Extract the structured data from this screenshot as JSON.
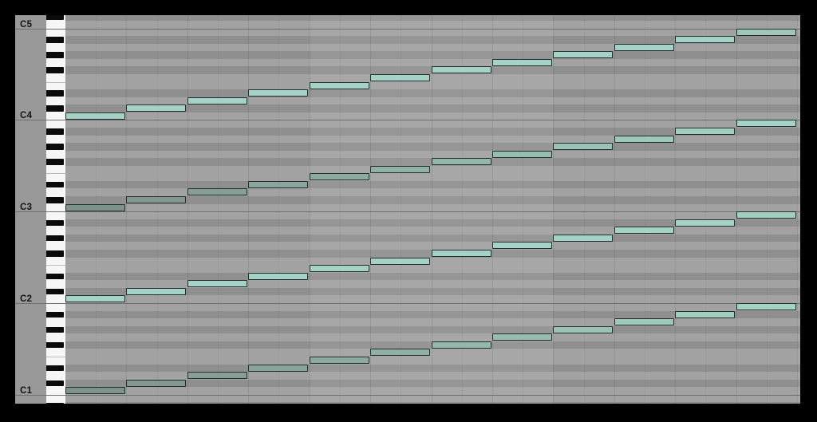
{
  "view": {
    "type": "midi-piano-roll",
    "octave_labels": [
      "C5",
      "C4",
      "C3",
      "C2",
      "C1"
    ]
  },
  "grid": {
    "bars": 3,
    "beats_per_bar": 4,
    "subdivisions_per_beat": 2,
    "visible_pitch_top": "C#5",
    "visible_pitch_bottom": "A#0"
  },
  "colors": {
    "frame_background": "#000000",
    "label_column_bg": "#999999",
    "label_text": "#141414",
    "row_white_key": "#a2a2a2",
    "row_black_key": "#8f8f8f",
    "bar_highlight": "rgba(255,255,255,0.062)",
    "beat_line": "rgba(0,0,0,0.09)",
    "subdivision_line": "rgba(0,0,0,0.045)",
    "octave_line": "#6f6f6f",
    "key_white": "#f6f6f6",
    "key_black": "#0b0b0b",
    "note_border": "#222e2b",
    "note_bright": "#a5d2c6",
    "note_dark": "#7e928c"
  },
  "notes": [
    {
      "pitch": "C4",
      "beat": 0,
      "length_beats": 1,
      "color": "#a5d2c6"
    },
    {
      "pitch": "C#4",
      "beat": 1,
      "length_beats": 1,
      "color": "#a5d2c6"
    },
    {
      "pitch": "D4",
      "beat": 2,
      "length_beats": 1,
      "color": "#a5d2c6"
    },
    {
      "pitch": "D#4",
      "beat": 3,
      "length_beats": 1,
      "color": "#a5d2c6"
    },
    {
      "pitch": "E4",
      "beat": 4,
      "length_beats": 1,
      "color": "#a5d2c6"
    },
    {
      "pitch": "F4",
      "beat": 5,
      "length_beats": 1,
      "color": "#a5d2c6"
    },
    {
      "pitch": "F#4",
      "beat": 6,
      "length_beats": 1,
      "color": "#a5d2c6"
    },
    {
      "pitch": "G4",
      "beat": 7,
      "length_beats": 1,
      "color": "#a5d2c6"
    },
    {
      "pitch": "G#4",
      "beat": 8,
      "length_beats": 1,
      "color": "#a5d2c6"
    },
    {
      "pitch": "A4",
      "beat": 9,
      "length_beats": 1,
      "color": "#a5d2c6"
    },
    {
      "pitch": "A#4",
      "beat": 10,
      "length_beats": 1,
      "color": "#a5d2c6"
    },
    {
      "pitch": "B4",
      "beat": 11,
      "length_beats": 1,
      "color": "#a0c6ba"
    },
    {
      "pitch": "C3",
      "beat": 0,
      "length_beats": 1,
      "color": "#7e928c"
    },
    {
      "pitch": "C#3",
      "beat": 1,
      "length_beats": 1,
      "color": "#829891"
    },
    {
      "pitch": "D3",
      "beat": 2,
      "length_beats": 1,
      "color": "#859e97"
    },
    {
      "pitch": "D#3",
      "beat": 3,
      "length_beats": 1,
      "color": "#89a49c"
    },
    {
      "pitch": "E3",
      "beat": 4,
      "length_beats": 1,
      "color": "#8daaa2"
    },
    {
      "pitch": "F3",
      "beat": 5,
      "length_beats": 1,
      "color": "#90b0a7"
    },
    {
      "pitch": "F#3",
      "beat": 6,
      "length_beats": 1,
      "color": "#94b6ac"
    },
    {
      "pitch": "G3",
      "beat": 7,
      "length_beats": 1,
      "color": "#97bcb2"
    },
    {
      "pitch": "G#3",
      "beat": 8,
      "length_beats": 1,
      "color": "#9bc2b7"
    },
    {
      "pitch": "A3",
      "beat": 9,
      "length_beats": 1,
      "color": "#9fc8bd"
    },
    {
      "pitch": "A#3",
      "beat": 10,
      "length_beats": 1,
      "color": "#a2cec2"
    },
    {
      "pitch": "B3",
      "beat": 11,
      "length_beats": 1,
      "color": "#a5d2c6"
    },
    {
      "pitch": "C2",
      "beat": 0,
      "length_beats": 1,
      "color": "#a5d2c6"
    },
    {
      "pitch": "C#2",
      "beat": 1,
      "length_beats": 1,
      "color": "#a5d2c6"
    },
    {
      "pitch": "D2",
      "beat": 2,
      "length_beats": 1,
      "color": "#a5d2c6"
    },
    {
      "pitch": "D#2",
      "beat": 3,
      "length_beats": 1,
      "color": "#a5d2c6"
    },
    {
      "pitch": "E2",
      "beat": 4,
      "length_beats": 1,
      "color": "#a5d2c6"
    },
    {
      "pitch": "F2",
      "beat": 5,
      "length_beats": 1,
      "color": "#a5d2c6"
    },
    {
      "pitch": "F#2",
      "beat": 6,
      "length_beats": 1,
      "color": "#a5d2c6"
    },
    {
      "pitch": "G2",
      "beat": 7,
      "length_beats": 1,
      "color": "#a5d2c6"
    },
    {
      "pitch": "G#2",
      "beat": 8,
      "length_beats": 1,
      "color": "#a5d2c6"
    },
    {
      "pitch": "A2",
      "beat": 9,
      "length_beats": 1,
      "color": "#a5d2c6"
    },
    {
      "pitch": "A#2",
      "beat": 10,
      "length_beats": 1,
      "color": "#a5d2c6"
    },
    {
      "pitch": "B2",
      "beat": 11,
      "length_beats": 1,
      "color": "#a3cec2"
    },
    {
      "pitch": "C1",
      "beat": 0,
      "length_beats": 1,
      "color": "#7e928c"
    },
    {
      "pitch": "C#1",
      "beat": 1,
      "length_beats": 1,
      "color": "#829891"
    },
    {
      "pitch": "D1",
      "beat": 2,
      "length_beats": 1,
      "color": "#859e97"
    },
    {
      "pitch": "D#1",
      "beat": 3,
      "length_beats": 1,
      "color": "#89a49c"
    },
    {
      "pitch": "E1",
      "beat": 4,
      "length_beats": 1,
      "color": "#8daaa2"
    },
    {
      "pitch": "F1",
      "beat": 5,
      "length_beats": 1,
      "color": "#90b0a7"
    },
    {
      "pitch": "F#1",
      "beat": 6,
      "length_beats": 1,
      "color": "#94b6ac"
    },
    {
      "pitch": "G1",
      "beat": 7,
      "length_beats": 1,
      "color": "#97bcb2"
    },
    {
      "pitch": "G#1",
      "beat": 8,
      "length_beats": 1,
      "color": "#9bc2b7"
    },
    {
      "pitch": "A1",
      "beat": 9,
      "length_beats": 1,
      "color": "#9fc8bd"
    },
    {
      "pitch": "A#1",
      "beat": 10,
      "length_beats": 1,
      "color": "#a2cec2"
    },
    {
      "pitch": "B1",
      "beat": 11,
      "length_beats": 1,
      "color": "#a5d2c6"
    }
  ]
}
